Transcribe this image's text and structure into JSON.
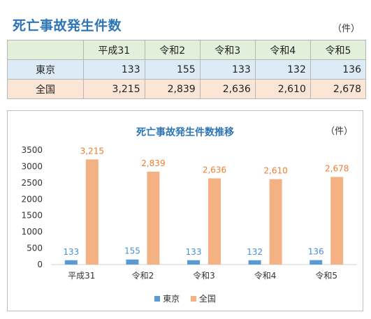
{
  "page": {
    "title": "死亡事故発生件数",
    "unit": "（件）"
  },
  "table": {
    "columns": [
      "平成31",
      "令和2",
      "令和3",
      "令和4",
      "令和5"
    ],
    "rows": [
      {
        "label": "東京",
        "values": [
          "133",
          "155",
          "133",
          "132",
          "136"
        ]
      },
      {
        "label": "全国",
        "values": [
          "3,215",
          "2,839",
          "2,636",
          "2,610",
          "2,678"
        ]
      }
    ]
  },
  "chart_data": {
    "type": "bar",
    "title": "死亡事故発生件数推移",
    "unit": "（件）",
    "categories": [
      "平成31",
      "令和2",
      "令和3",
      "令和4",
      "令和5"
    ],
    "series": [
      {
        "name": "東京",
        "values": [
          133,
          155,
          133,
          132,
          136
        ],
        "labels": [
          "133",
          "155",
          "133",
          "132",
          "136"
        ],
        "color": "#5b9bd5"
      },
      {
        "name": "全国",
        "values": [
          3215,
          2839,
          2636,
          2610,
          2678
        ],
        "labels": [
          "3,215",
          "2,839",
          "2,636",
          "2,610",
          "2,678"
        ],
        "color": "#f4b183"
      }
    ],
    "yticks": [
      0,
      500,
      1000,
      1500,
      2000,
      2500,
      3000,
      3500
    ],
    "ylim": [
      0,
      3500
    ],
    "grid": false,
    "legend": "bottom",
    "label_colors": {
      "東京": "#4a8fd0",
      "全国": "#ed7d31"
    }
  }
}
